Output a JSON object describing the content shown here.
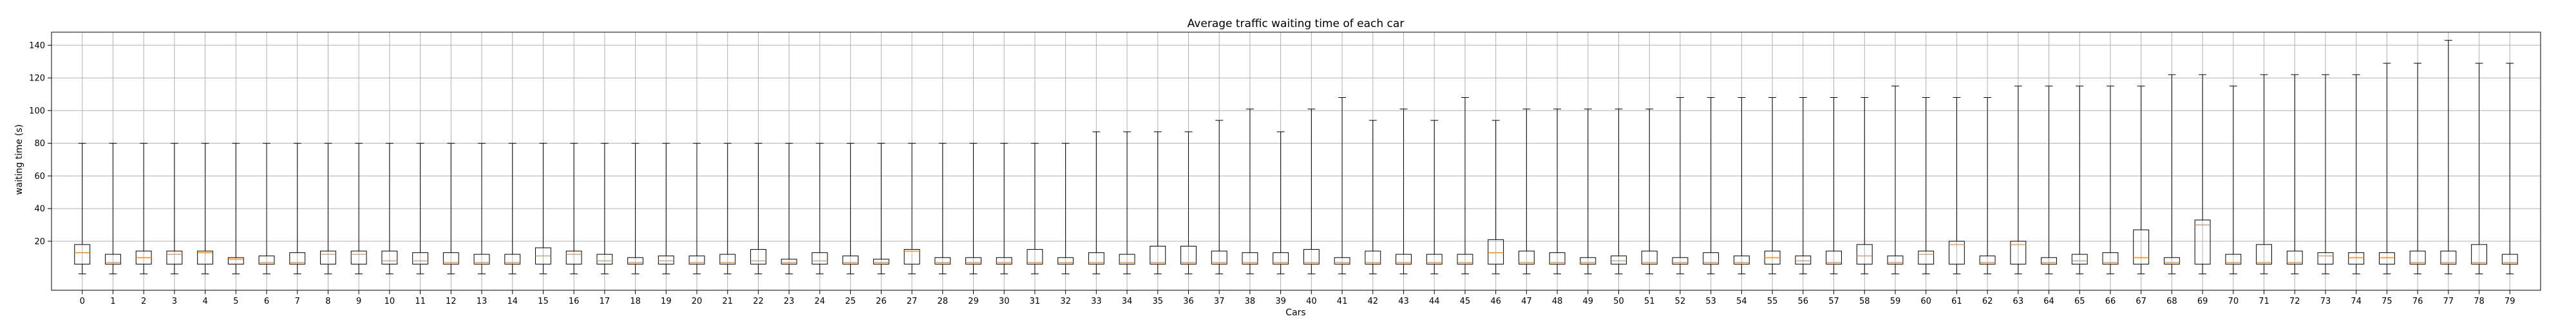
{
  "chart_data": {
    "type": "box",
    "title": "Average traffic waiting time of each car",
    "xlabel": "Cars",
    "ylabel": "waiting time (s)",
    "ylim": [
      -10,
      148
    ],
    "yticks": [
      20,
      40,
      60,
      80,
      100,
      120,
      140
    ],
    "grid": true,
    "categories": [
      "0",
      "1",
      "2",
      "3",
      "4",
      "5",
      "6",
      "7",
      "8",
      "9",
      "10",
      "11",
      "12",
      "13",
      "14",
      "15",
      "16",
      "17",
      "18",
      "19",
      "20",
      "21",
      "22",
      "23",
      "24",
      "25",
      "26",
      "27",
      "28",
      "29",
      "30",
      "31",
      "32",
      "33",
      "34",
      "35",
      "36",
      "37",
      "38",
      "39",
      "40",
      "41",
      "42",
      "43",
      "44",
      "45",
      "46",
      "47",
      "48",
      "49",
      "50",
      "51",
      "52",
      "53",
      "54",
      "55",
      "56",
      "57",
      "58",
      "59",
      "60",
      "61",
      "62",
      "63",
      "64",
      "65",
      "66",
      "67",
      "68",
      "69",
      "70",
      "71",
      "72",
      "73",
      "74",
      "75",
      "76",
      "77",
      "78",
      "79"
    ],
    "boxes": [
      {
        "q1": 6,
        "median": 13,
        "q3": 18,
        "whisker_low": 0,
        "whisker_high": 80
      },
      {
        "q1": 6,
        "median": 7,
        "q3": 12,
        "whisker_low": 0,
        "whisker_high": 80
      },
      {
        "q1": 6,
        "median": 10,
        "q3": 14,
        "whisker_low": 0,
        "whisker_high": 80
      },
      {
        "q1": 6,
        "median": 12,
        "q3": 14,
        "whisker_low": 0,
        "whisker_high": 80
      },
      {
        "q1": 6,
        "median": 13,
        "q3": 14,
        "whisker_low": 0,
        "whisker_high": 80
      },
      {
        "q1": 6,
        "median": 9,
        "q3": 10,
        "whisker_low": 0,
        "whisker_high": 80
      },
      {
        "q1": 6,
        "median": 7,
        "q3": 11,
        "whisker_low": 0,
        "whisker_high": 80
      },
      {
        "q1": 6,
        "median": 7,
        "q3": 13,
        "whisker_low": 0,
        "whisker_high": 80
      },
      {
        "q1": 6,
        "median": 12,
        "q3": 14,
        "whisker_low": 0,
        "whisker_high": 80
      },
      {
        "q1": 6,
        "median": 12,
        "q3": 14,
        "whisker_low": 0,
        "whisker_high": 80
      },
      {
        "q1": 6,
        "median": 8,
        "q3": 14,
        "whisker_low": 0,
        "whisker_high": 80
      },
      {
        "q1": 6,
        "median": 8,
        "q3": 13,
        "whisker_low": 0,
        "whisker_high": 80
      },
      {
        "q1": 6,
        "median": 7,
        "q3": 13,
        "whisker_low": 0,
        "whisker_high": 80
      },
      {
        "q1": 6,
        "median": 7,
        "q3": 12,
        "whisker_low": 0,
        "whisker_high": 80
      },
      {
        "q1": 6,
        "median": 7,
        "q3": 12,
        "whisker_low": 0,
        "whisker_high": 80
      },
      {
        "q1": 6,
        "median": 11,
        "q3": 16,
        "whisker_low": 0,
        "whisker_high": 80
      },
      {
        "q1": 6,
        "median": 12,
        "q3": 14,
        "whisker_low": 0,
        "whisker_high": 80
      },
      {
        "q1": 6,
        "median": 8,
        "q3": 12,
        "whisker_low": 0,
        "whisker_high": 80
      },
      {
        "q1": 6,
        "median": 7,
        "q3": 10,
        "whisker_low": 0,
        "whisker_high": 80
      },
      {
        "q1": 6,
        "median": 8,
        "q3": 11,
        "whisker_low": 0,
        "whisker_high": 80
      },
      {
        "q1": 6,
        "median": 7,
        "q3": 11,
        "whisker_low": 0,
        "whisker_high": 80
      },
      {
        "q1": 6,
        "median": 7,
        "q3": 12,
        "whisker_low": 0,
        "whisker_high": 80
      },
      {
        "q1": 6,
        "median": 8,
        "q3": 15,
        "whisker_low": 0,
        "whisker_high": 80
      },
      {
        "q1": 6,
        "median": 7,
        "q3": 9,
        "whisker_low": 0,
        "whisker_high": 80
      },
      {
        "q1": 6,
        "median": 8,
        "q3": 13,
        "whisker_low": 0,
        "whisker_high": 80
      },
      {
        "q1": 6,
        "median": 7,
        "q3": 11,
        "whisker_low": 0,
        "whisker_high": 80
      },
      {
        "q1": 6,
        "median": 7,
        "q3": 9,
        "whisker_low": 0,
        "whisker_high": 80
      },
      {
        "q1": 6,
        "median": 14,
        "q3": 15,
        "whisker_low": 0,
        "whisker_high": 80
      },
      {
        "q1": 6,
        "median": 7,
        "q3": 10,
        "whisker_low": 0,
        "whisker_high": 80
      },
      {
        "q1": 6,
        "median": 7,
        "q3": 10,
        "whisker_low": 0,
        "whisker_high": 80
      },
      {
        "q1": 6,
        "median": 7,
        "q3": 10,
        "whisker_low": 0,
        "whisker_high": 80
      },
      {
        "q1": 6,
        "median": 7,
        "q3": 15,
        "whisker_low": 0,
        "whisker_high": 80
      },
      {
        "q1": 6,
        "median": 7,
        "q3": 10,
        "whisker_low": 0,
        "whisker_high": 80
      },
      {
        "q1": 6,
        "median": 7,
        "q3": 13,
        "whisker_low": 0,
        "whisker_high": 87
      },
      {
        "q1": 6,
        "median": 7,
        "q3": 12,
        "whisker_low": 0,
        "whisker_high": 87
      },
      {
        "q1": 6,
        "median": 7,
        "q3": 17,
        "whisker_low": 0,
        "whisker_high": 87
      },
      {
        "q1": 6,
        "median": 7,
        "q3": 17,
        "whisker_low": 0,
        "whisker_high": 87
      },
      {
        "q1": 6,
        "median": 7,
        "q3": 14,
        "whisker_low": 0,
        "whisker_high": 94
      },
      {
        "q1": 6,
        "median": 7,
        "q3": 13,
        "whisker_low": 0,
        "whisker_high": 101
      },
      {
        "q1": 6,
        "median": 7,
        "q3": 13,
        "whisker_low": 0,
        "whisker_high": 87
      },
      {
        "q1": 6,
        "median": 7,
        "q3": 15,
        "whisker_low": 0,
        "whisker_high": 101
      },
      {
        "q1": 6,
        "median": 7,
        "q3": 10,
        "whisker_low": 0,
        "whisker_high": 108
      },
      {
        "q1": 6,
        "median": 7,
        "q3": 14,
        "whisker_low": 0,
        "whisker_high": 94
      },
      {
        "q1": 6,
        "median": 7,
        "q3": 12,
        "whisker_low": 0,
        "whisker_high": 101
      },
      {
        "q1": 6,
        "median": 7,
        "q3": 12,
        "whisker_low": 0,
        "whisker_high": 94
      },
      {
        "q1": 6,
        "median": 7,
        "q3": 12,
        "whisker_low": 0,
        "whisker_high": 108
      },
      {
        "q1": 6,
        "median": 13,
        "q3": 21,
        "whisker_low": 0,
        "whisker_high": 94
      },
      {
        "q1": 6,
        "median": 7,
        "q3": 14,
        "whisker_low": 0,
        "whisker_high": 101
      },
      {
        "q1": 6,
        "median": 7,
        "q3": 13,
        "whisker_low": 0,
        "whisker_high": 101
      },
      {
        "q1": 6,
        "median": 7,
        "q3": 10,
        "whisker_low": 0,
        "whisker_high": 101
      },
      {
        "q1": 6,
        "median": 8,
        "q3": 11,
        "whisker_low": 0,
        "whisker_high": 101
      },
      {
        "q1": 6,
        "median": 7,
        "q3": 14,
        "whisker_low": 0,
        "whisker_high": 101
      },
      {
        "q1": 6,
        "median": 7,
        "q3": 10,
        "whisker_low": 0,
        "whisker_high": 108
      },
      {
        "q1": 6,
        "median": 7,
        "q3": 13,
        "whisker_low": 0,
        "whisker_high": 108
      },
      {
        "q1": 6,
        "median": 7,
        "q3": 11,
        "whisker_low": 0,
        "whisker_high": 108
      },
      {
        "q1": 6,
        "median": 10,
        "q3": 14,
        "whisker_low": 0,
        "whisker_high": 108
      },
      {
        "q1": 6,
        "median": 8,
        "q3": 11,
        "whisker_low": 0,
        "whisker_high": 108
      },
      {
        "q1": 6,
        "median": 7,
        "q3": 14,
        "whisker_low": 0,
        "whisker_high": 108
      },
      {
        "q1": 6,
        "median": 11,
        "q3": 18,
        "whisker_low": 0,
        "whisker_high": 108
      },
      {
        "q1": 6,
        "median": 7,
        "q3": 11,
        "whisker_low": 0,
        "whisker_high": 115
      },
      {
        "q1": 6,
        "median": 12,
        "q3": 14,
        "whisker_low": 0,
        "whisker_high": 108
      },
      {
        "q1": 6,
        "median": 18,
        "q3": 20,
        "whisker_low": 0,
        "whisker_high": 108
      },
      {
        "q1": 6,
        "median": 7,
        "q3": 11,
        "whisker_low": 0,
        "whisker_high": 108
      },
      {
        "q1": 6,
        "median": 18,
        "q3": 20,
        "whisker_low": 0,
        "whisker_high": 115
      },
      {
        "q1": 6,
        "median": 7,
        "q3": 10,
        "whisker_low": 0,
        "whisker_high": 115
      },
      {
        "q1": 6,
        "median": 8,
        "q3": 12,
        "whisker_low": 0,
        "whisker_high": 115
      },
      {
        "q1": 6,
        "median": 7,
        "q3": 13,
        "whisker_low": 0,
        "whisker_high": 115
      },
      {
        "q1": 6,
        "median": 10,
        "q3": 27,
        "whisker_low": 0,
        "whisker_high": 115
      },
      {
        "q1": 6,
        "median": 7,
        "q3": 10,
        "whisker_low": 0,
        "whisker_high": 122
      },
      {
        "q1": 6,
        "median": 30,
        "q3": 33,
        "whisker_low": 0,
        "whisker_high": 122
      },
      {
        "q1": 6,
        "median": 7,
        "q3": 12,
        "whisker_low": 0,
        "whisker_high": 115
      },
      {
        "q1": 6,
        "median": 7,
        "q3": 18,
        "whisker_low": 0,
        "whisker_high": 122
      },
      {
        "q1": 6,
        "median": 7,
        "q3": 14,
        "whisker_low": 0,
        "whisker_high": 122
      },
      {
        "q1": 6,
        "median": 11,
        "q3": 13,
        "whisker_low": 0,
        "whisker_high": 122
      },
      {
        "q1": 6,
        "median": 10,
        "q3": 13,
        "whisker_low": 0,
        "whisker_high": 122
      },
      {
        "q1": 6,
        "median": 10,
        "q3": 13,
        "whisker_low": 0,
        "whisker_high": 129
      },
      {
        "q1": 6,
        "median": 7,
        "q3": 14,
        "whisker_low": 0,
        "whisker_high": 129
      },
      {
        "q1": 6,
        "median": 7,
        "q3": 14,
        "whisker_low": 0,
        "whisker_high": 143
      },
      {
        "q1": 6,
        "median": 7,
        "q3": 18,
        "whisker_low": 0,
        "whisker_high": 129
      },
      {
        "q1": 6,
        "median": 7,
        "q3": 12,
        "whisker_low": 0,
        "whisker_high": 129
      }
    ],
    "colors": {
      "box": "#000000",
      "median": "#ff7f0e",
      "grid": "#b0b0b0",
      "background": "#ffffff"
    }
  }
}
